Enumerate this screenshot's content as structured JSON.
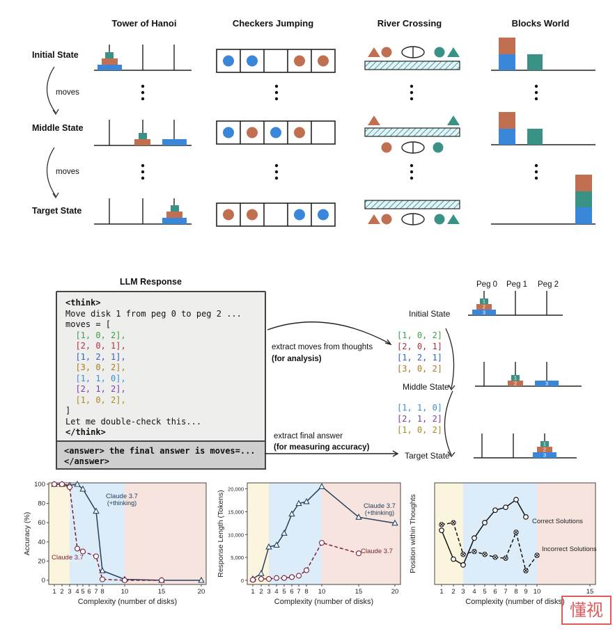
{
  "puzzles": {
    "headers": [
      "Tower of Hanoi",
      "Checkers Jumping",
      "River Crossing",
      "Blocks World"
    ],
    "rows": [
      "Initial State",
      "Middle State",
      "Target State"
    ],
    "arrow_label": "moves"
  },
  "llm": {
    "title": "LLM Response",
    "code_lines": [
      {
        "text": "<think>",
        "color": "#111111",
        "bold": true
      },
      {
        "text": "Move disk 1 from peg 0 to peg 2 ...",
        "color": "#111111",
        "bold": false
      },
      {
        "text": "moves = [",
        "color": "#111111",
        "bold": false
      },
      {
        "text": "  [1, 0, 2],",
        "color": "#3aa04a",
        "bold": false
      },
      {
        "text": "  [2, 0, 1],",
        "color": "#b03040",
        "bold": false
      },
      {
        "text": "  [1, 2, 1],",
        "color": "#2e62c8",
        "bold": false
      },
      {
        "text": "  [3, 0, 2],",
        "color": "#a87a20",
        "bold": false
      },
      {
        "text": "  [1, 1, 0],",
        "color": "#3a8ed8",
        "bold": false
      },
      {
        "text": "  [2, 1, 2],",
        "color": "#7a3ab0",
        "bold": false
      },
      {
        "text": "  [1, 0, 2],",
        "color": "#a88a20",
        "bold": false
      },
      {
        "text": "]",
        "color": "#111111",
        "bold": false
      },
      {
        "text": "Let me double-check this...",
        "color": "#111111",
        "bold": false
      },
      {
        "text": "</think>",
        "color": "#111111",
        "bold": true
      }
    ],
    "answer_lines": [
      "<answer> the final answer is moves=...",
      "</answer>"
    ],
    "extract_moves": "extract moves  from thoughts",
    "extract_moves_sub": "(for analysis)",
    "extract_answer": "extract final answer",
    "extract_answer_sub": "(for measuring accuracy)"
  },
  "hanoi_right": {
    "pegs": [
      "Peg 0",
      "Peg 1",
      "Peg 2"
    ],
    "states": [
      "Initial State",
      "Middle State",
      "Target State"
    ],
    "moves_a": [
      {
        "text": "[1, 0, 2]",
        "color": "#3aa04a"
      },
      {
        "text": "[2, 0, 1]",
        "color": "#b03040"
      },
      {
        "text": "[1, 2, 1]",
        "color": "#2e62c8"
      },
      {
        "text": "[3, 0, 2]",
        "color": "#a87a20"
      }
    ],
    "moves_b": [
      {
        "text": "[1, 1, 0]",
        "color": "#3a8ed8"
      },
      {
        "text": "[2, 1, 2]",
        "color": "#7a3ab0"
      },
      {
        "text": "[1, 0, 2]",
        "color": "#a88a20"
      }
    ],
    "disk_labels": [
      "1",
      "2",
      "3"
    ]
  },
  "colors": {
    "teal": "#3a9186",
    "rust": "#c07050",
    "blue": "#3a86d8",
    "pale_yellow": "#fbf5de",
    "pale_blue": "#dcecf8",
    "pale_pink": "#f7e4de"
  },
  "chart_data": [
    {
      "type": "line",
      "xlabel": "Complexity (number of disks)",
      "ylabel": "Accuracy (%)",
      "xticks": [
        1,
        2,
        3,
        4,
        5,
        6,
        7,
        8,
        10,
        15,
        20
      ],
      "yticks": [
        0,
        20,
        40,
        60,
        80,
        100
      ],
      "ylim": [
        0,
        100
      ],
      "series": [
        {
          "name": "Claude 3.7 (+thinking)",
          "x": [
            1,
            2,
            3,
            4,
            5,
            7,
            8,
            10,
            15,
            20
          ],
          "values": [
            100,
            100,
            99,
            100,
            95,
            72,
            10,
            1,
            0,
            0
          ]
        },
        {
          "name": "Claude 3.7",
          "x": [
            1,
            2,
            3,
            4,
            5,
            7,
            8,
            10,
            15
          ],
          "values": [
            100,
            100,
            97,
            33,
            30,
            25,
            1,
            0,
            0
          ]
        }
      ]
    },
    {
      "type": "line",
      "xlabel": "Complexity (number of disks)",
      "ylabel": "Response Length (Tokens)",
      "xticks": [
        1,
        2,
        3,
        4,
        5,
        6,
        7,
        8,
        10,
        15,
        20
      ],
      "yticks": [
        0,
        5000,
        10000,
        15000,
        20000
      ],
      "ytick_labels": [
        "0",
        "5,000",
        "10,000",
        "15,000",
        "20,000"
      ],
      "ylim": [
        0,
        21000
      ],
      "series": [
        {
          "name": "Claude 3.7 (+thinking)",
          "x": [
            1,
            2,
            3,
            4,
            5,
            6,
            7,
            8,
            10,
            15,
            20
          ],
          "values": [
            300,
            1500,
            7300,
            7700,
            10300,
            14500,
            16800,
            17200,
            20500,
            13800,
            12500
          ]
        },
        {
          "name": "Claude 3.7",
          "x": [
            1,
            2,
            3,
            4,
            5,
            6,
            7,
            8,
            10,
            15
          ],
          "values": [
            100,
            300,
            300,
            500,
            500,
            700,
            1000,
            2200,
            8200,
            5900
          ]
        }
      ]
    },
    {
      "type": "line",
      "xlabel": "Complexity (number of disks)",
      "ylabel": "Position within Thoughts",
      "xticks": [
        1,
        2,
        3,
        4,
        5,
        6,
        7,
        8,
        9,
        10,
        15
      ],
      "ylim": [
        0,
        1
      ],
      "series": [
        {
          "name": "Correct Solutions",
          "x": [
            1,
            2,
            3,
            4,
            5,
            6,
            7,
            8,
            9
          ],
          "values": [
            0.52,
            0.22,
            0.16,
            0.44,
            0.6,
            0.73,
            0.76,
            0.84,
            0.66
          ]
        },
        {
          "name": "Incorrect Solutions",
          "x": [
            1,
            2,
            3,
            4,
            5,
            6,
            7,
            8,
            9,
            10
          ],
          "values": [
            0.58,
            0.6,
            0.27,
            0.3,
            0.27,
            0.24,
            0.23,
            0.5,
            0.1,
            0.26
          ]
        }
      ]
    }
  ],
  "chart_labels": {
    "thinking": "Claude 3.7",
    "thinking2": "(+thinking)",
    "plain": "Claude 3.7",
    "correct": "Correct Solutions",
    "incorrect": "Incorrect Solutions"
  },
  "watermark": "懂视"
}
